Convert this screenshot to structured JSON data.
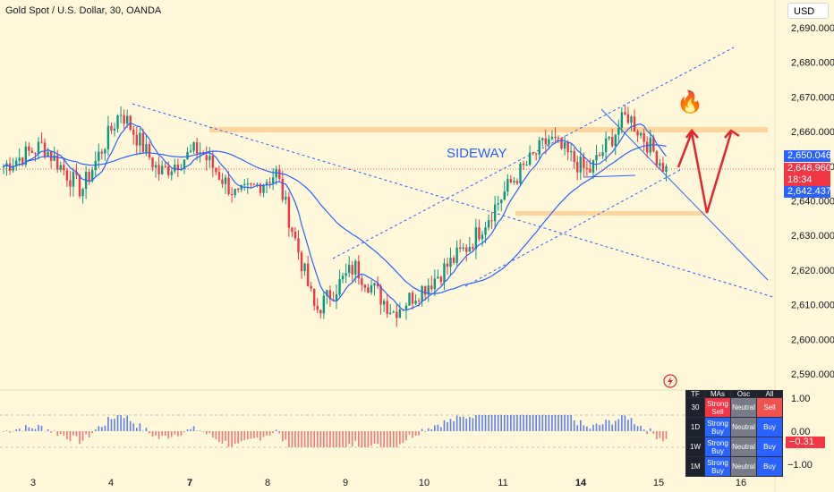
{
  "header": {
    "title": "Gold Spot / U.S. Dollar, 30, OANDA",
    "currency": "USD"
  },
  "price_tags": {
    "upper": "2,650.046",
    "last": "2,648.960",
    "countdown": "18:34",
    "lower": "2,642.437",
    "oscillator_value": "−0.31"
  },
  "annotations": {
    "sideway": "SIDEWAY",
    "fire": "🔥"
  },
  "oscillator_axis": [
    "1.00",
    "0.00",
    "−1.00"
  ],
  "ta_table": {
    "headers": [
      "TF",
      "MAs",
      "Osc",
      "All"
    ],
    "rows": [
      {
        "tf": "30",
        "mas": "Strong Sell",
        "osc": "Neutral",
        "all": "Sell"
      },
      {
        "tf": "1D",
        "mas": "Strong Buy",
        "osc": "Neutral",
        "all": "Buy"
      },
      {
        "tf": "1W",
        "mas": "Strong Buy",
        "osc": "Neutral",
        "all": "Buy"
      },
      {
        "tf": "1M",
        "mas": "Strong Buy",
        "osc": "Neutral",
        "all": "Buy"
      }
    ]
  },
  "colors": {
    "background": "#fff7d9",
    "up_candle": "#089981",
    "down_candle": "#f23645",
    "ma_line": "#2962ff",
    "zone": "#ffd59e",
    "arrow": "#e2262f"
  },
  "chart_data": {
    "type": "candlestick",
    "title": "Gold Spot / U.S. Dollar, 30, OANDA",
    "ylim": [
      2585,
      2695
    ],
    "y_ticks": [
      2590,
      2600,
      2610,
      2620,
      2630,
      2640,
      2650,
      2660,
      2670,
      2680,
      2690
    ],
    "x_ticks": [
      "3",
      "4",
      "7",
      "8",
      "9",
      "10",
      "11",
      "14",
      "15",
      "16"
    ],
    "x_tick_bold": [
      "7",
      "14"
    ],
    "approx_close_path": [
      {
        "date": "3",
        "close": 2650
      },
      {
        "date": "3",
        "close": 2656
      },
      {
        "date": "4",
        "close": 2643
      },
      {
        "date": "4",
        "close": 2666
      },
      {
        "date": "7",
        "close": 2648
      },
      {
        "date": "7",
        "close": 2655
      },
      {
        "date": "8",
        "close": 2641
      },
      {
        "date": "8",
        "close": 2648
      },
      {
        "date": "9",
        "close": 2608
      },
      {
        "date": "9",
        "close": 2621
      },
      {
        "date": "10",
        "close": 2608
      },
      {
        "date": "10",
        "close": 2617
      },
      {
        "date": "11",
        "close": 2628
      },
      {
        "date": "11",
        "close": 2645
      },
      {
        "date": "14",
        "close": 2658
      },
      {
        "date": "14",
        "close": 2648
      },
      {
        "date": "15",
        "close": 2665
      },
      {
        "date": "15",
        "close": 2649
      }
    ],
    "resistance_zone": 2660.5,
    "support_zone": 2637
  }
}
